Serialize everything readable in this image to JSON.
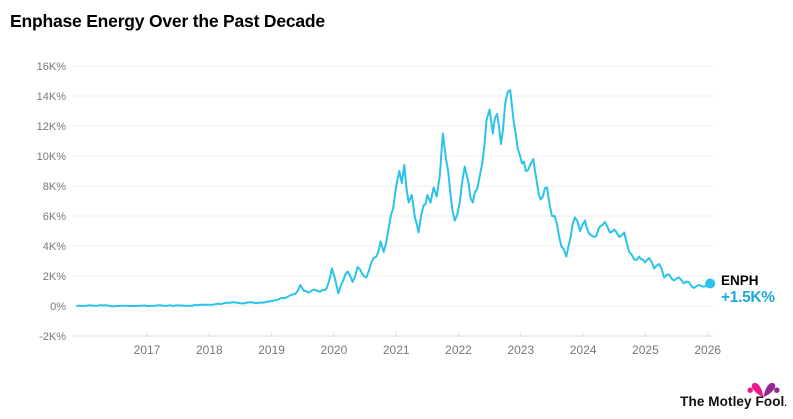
{
  "header": {
    "title": "Enphase Energy Over the Past Decade"
  },
  "colors": {
    "line": "#2bc3e9",
    "change_text": "#1fa9d8",
    "title_text": "#000000",
    "axis_text": "#75787b",
    "grid": "#ececec",
    "axis_line": "#dcdcdc",
    "logo_pink": "#e9198a",
    "logo_purple": "#92278f"
  },
  "chart_data": {
    "type": "line",
    "title": "Enphase Energy Over the Past Decade",
    "xlabel": "",
    "ylabel": "",
    "unit": "K% = thousands of percent total return",
    "grid": "horizontal",
    "legend_position": "none",
    "ylim_K": [
      -2,
      16
    ],
    "x_range_years": [
      2015.88,
      2026.04
    ],
    "yticks": [
      {
        "value": 16,
        "label": "16K%"
      },
      {
        "value": 14,
        "label": "14K%"
      },
      {
        "value": 12,
        "label": "12K%"
      },
      {
        "value": 10,
        "label": "10K%"
      },
      {
        "value": 8,
        "label": "8K%"
      },
      {
        "value": 6,
        "label": "6K%"
      },
      {
        "value": 4,
        "label": "4K%"
      },
      {
        "value": 2,
        "label": "2K%"
      },
      {
        "value": 0,
        "label": "0%"
      },
      {
        "value": -2,
        "label": "-2K%"
      }
    ],
    "xticks": [
      {
        "value": 2017,
        "label": "2017"
      },
      {
        "value": 2018,
        "label": "2018"
      },
      {
        "value": 2019,
        "label": "2019"
      },
      {
        "value": 2020,
        "label": "2020"
      },
      {
        "value": 2021,
        "label": "2021"
      },
      {
        "value": 2022,
        "label": "2022"
      },
      {
        "value": 2023,
        "label": "2023"
      },
      {
        "value": 2024,
        "label": "2024"
      },
      {
        "value": 2025,
        "label": "2025"
      },
      {
        "value": 2026,
        "label": "2026"
      }
    ],
    "series": [
      {
        "name": "ENPH",
        "points_year_vs_K_percent": [
          [
            2015.88,
            0.0
          ],
          [
            2016.0,
            0.02
          ],
          [
            2016.1,
            0.05
          ],
          [
            2016.2,
            0.01
          ],
          [
            2016.3,
            0.04
          ],
          [
            2016.45,
            -0.02
          ],
          [
            2016.6,
            0.02
          ],
          [
            2016.75,
            0.0
          ],
          [
            2016.9,
            0.03
          ],
          [
            2017.0,
            0.0
          ],
          [
            2017.15,
            0.03
          ],
          [
            2017.3,
            0.01
          ],
          [
            2017.5,
            0.04
          ],
          [
            2017.65,
            0.02
          ],
          [
            2017.8,
            0.06
          ],
          [
            2017.95,
            0.08
          ],
          [
            2018.1,
            0.12
          ],
          [
            2018.25,
            0.2
          ],
          [
            2018.4,
            0.26
          ],
          [
            2018.5,
            0.18
          ],
          [
            2018.65,
            0.24
          ],
          [
            2018.8,
            0.22
          ],
          [
            2018.95,
            0.3
          ],
          [
            2019.1,
            0.42
          ],
          [
            2019.25,
            0.6
          ],
          [
            2019.38,
            0.8
          ],
          [
            2019.46,
            1.4
          ],
          [
            2019.52,
            1.0
          ],
          [
            2019.58,
            0.9
          ],
          [
            2019.68,
            1.1
          ],
          [
            2019.78,
            0.95
          ],
          [
            2019.88,
            1.15
          ],
          [
            2019.97,
            2.5
          ],
          [
            2020.02,
            1.8
          ],
          [
            2020.07,
            0.85
          ],
          [
            2020.15,
            1.7
          ],
          [
            2020.22,
            2.3
          ],
          [
            2020.3,
            1.6
          ],
          [
            2020.38,
            2.6
          ],
          [
            2020.45,
            2.2
          ],
          [
            2020.52,
            1.9
          ],
          [
            2020.6,
            2.9
          ],
          [
            2020.68,
            3.3
          ],
          [
            2020.75,
            4.3
          ],
          [
            2020.8,
            3.6
          ],
          [
            2020.88,
            5.2
          ],
          [
            2020.95,
            6.5
          ],
          [
            2021.0,
            8.0
          ],
          [
            2021.05,
            9.0
          ],
          [
            2021.09,
            8.2
          ],
          [
            2021.13,
            9.4
          ],
          [
            2021.2,
            6.9
          ],
          [
            2021.25,
            7.4
          ],
          [
            2021.3,
            5.9
          ],
          [
            2021.36,
            4.9
          ],
          [
            2021.44,
            6.7
          ],
          [
            2021.5,
            7.4
          ],
          [
            2021.55,
            6.9
          ],
          [
            2021.6,
            7.9
          ],
          [
            2021.65,
            7.3
          ],
          [
            2021.7,
            8.7
          ],
          [
            2021.75,
            11.5
          ],
          [
            2021.8,
            9.8
          ],
          [
            2021.87,
            7.5
          ],
          [
            2021.94,
            5.7
          ],
          [
            2022.02,
            6.9
          ],
          [
            2022.1,
            9.3
          ],
          [
            2022.16,
            8.2
          ],
          [
            2022.23,
            6.9
          ],
          [
            2022.3,
            7.8
          ],
          [
            2022.38,
            9.5
          ],
          [
            2022.45,
            12.4
          ],
          [
            2022.5,
            13.1
          ],
          [
            2022.55,
            11.5
          ],
          [
            2022.62,
            12.8
          ],
          [
            2022.68,
            10.8
          ],
          [
            2022.75,
            13.5
          ],
          [
            2022.83,
            14.4
          ],
          [
            2022.89,
            12.2
          ],
          [
            2022.95,
            10.5
          ],
          [
            2023.02,
            9.5
          ],
          [
            2023.08,
            9.0
          ],
          [
            2023.15,
            9.4
          ],
          [
            2023.2,
            9.8
          ],
          [
            2023.26,
            8.2
          ],
          [
            2023.32,
            7.1
          ],
          [
            2023.42,
            7.9
          ],
          [
            2023.5,
            6.0
          ],
          [
            2023.58,
            5.5
          ],
          [
            2023.65,
            4.0
          ],
          [
            2023.73,
            3.3
          ],
          [
            2023.8,
            4.6
          ],
          [
            2023.87,
            5.9
          ],
          [
            2023.95,
            5.0
          ],
          [
            2024.03,
            5.7
          ],
          [
            2024.1,
            4.8
          ],
          [
            2024.18,
            4.6
          ],
          [
            2024.27,
            5.3
          ],
          [
            2024.35,
            5.6
          ],
          [
            2024.43,
            4.9
          ],
          [
            2024.5,
            5.1
          ],
          [
            2024.58,
            4.6
          ],
          [
            2024.66,
            4.9
          ],
          [
            2024.74,
            3.6
          ],
          [
            2024.82,
            3.1
          ],
          [
            2024.9,
            3.3
          ],
          [
            2024.99,
            2.9
          ],
          [
            2025.06,
            3.2
          ],
          [
            2025.14,
            2.5
          ],
          [
            2025.22,
            2.8
          ],
          [
            2025.3,
            1.9
          ],
          [
            2025.38,
            2.1
          ],
          [
            2025.46,
            1.7
          ],
          [
            2025.54,
            1.9
          ],
          [
            2025.62,
            1.5
          ],
          [
            2025.7,
            1.6
          ],
          [
            2025.78,
            1.2
          ],
          [
            2025.86,
            1.4
          ],
          [
            2025.95,
            1.3
          ],
          [
            2026.04,
            1.5
          ]
        ]
      }
    ],
    "end_label": {
      "ticker": "ENPH",
      "value": "+1.5K%"
    }
  },
  "logo": {
    "text": "The Motley Fool",
    "mark": "."
  }
}
